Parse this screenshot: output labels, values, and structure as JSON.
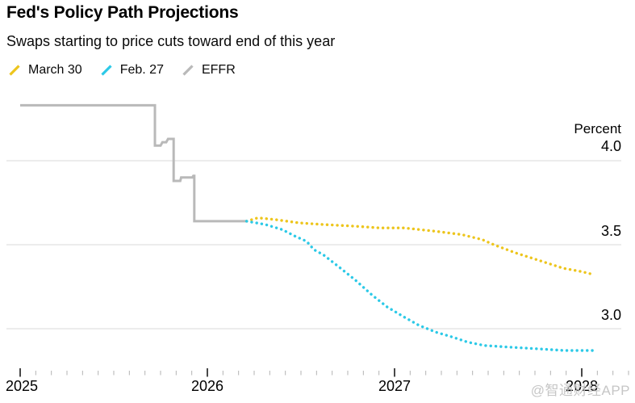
{
  "header": {
    "title": "Fed's Policy Path Projections",
    "subtitle": "Swaps starting to price cuts toward end of this year"
  },
  "legend": [
    {
      "label": "March 30",
      "color": "#edc51c",
      "icon": "line-swatch-icon"
    },
    {
      "label": "Feb. 27",
      "color": "#2cc9e7",
      "icon": "line-swatch-icon"
    },
    {
      "label": "EFFR",
      "color": "#b9b9b9",
      "icon": "line-swatch-icon"
    }
  ],
  "watermark": "@智通财经APP",
  "chart_data": {
    "type": "line",
    "title": "Fed's Policy Path Projections",
    "subtitle": "Swaps starting to price cuts toward end of this year",
    "ylabel": "Percent",
    "grid": "horizontal",
    "legend_position": "top-left",
    "x_axis": {
      "tick_labels": [
        "2025",
        "2026",
        "2027",
        "2028"
      ],
      "tick_values": [
        2025,
        2026,
        2027,
        2028
      ],
      "minor_ticks": "monthly",
      "range": [
        2025.0,
        2028.25
      ]
    },
    "y_axis": {
      "tick_labels": [
        "4.0",
        "3.5",
        "3.0"
      ],
      "tick_values": [
        4.0,
        3.5,
        3.0
      ],
      "visible_range": [
        2.75,
        4.45
      ]
    },
    "series": [
      {
        "name": "EFFR",
        "color": "#b9b9b9",
        "style": "solid",
        "points": [
          [
            2025.0,
            4.33
          ],
          [
            2025.72,
            4.33
          ],
          [
            2025.72,
            4.09
          ],
          [
            2025.75,
            4.09
          ],
          [
            2025.76,
            4.11
          ],
          [
            2025.78,
            4.11
          ],
          [
            2025.79,
            4.13
          ],
          [
            2025.82,
            4.13
          ],
          [
            2025.82,
            3.88
          ],
          [
            2025.855,
            3.88
          ],
          [
            2025.86,
            3.9
          ],
          [
            2025.92,
            3.9
          ],
          [
            2025.925,
            3.91
          ],
          [
            2025.93,
            3.91
          ],
          [
            2025.93,
            3.64
          ],
          [
            2026.21,
            3.64
          ]
        ]
      },
      {
        "name": "March 30",
        "color": "#edc51c",
        "style": "dotted",
        "points": [
          [
            2026.21,
            3.64
          ],
          [
            2026.27,
            3.66
          ],
          [
            2026.36,
            3.65
          ],
          [
            2026.49,
            3.63
          ],
          [
            2026.62,
            3.62
          ],
          [
            2026.79,
            3.61
          ],
          [
            2026.92,
            3.6
          ],
          [
            2027.05,
            3.6
          ],
          [
            2027.22,
            3.58
          ],
          [
            2027.36,
            3.56
          ],
          [
            2027.47,
            3.53
          ],
          [
            2027.53,
            3.5
          ],
          [
            2027.65,
            3.45
          ],
          [
            2027.79,
            3.4
          ],
          [
            2027.9,
            3.36
          ],
          [
            2028.0,
            3.34
          ],
          [
            2028.07,
            3.32
          ]
        ]
      },
      {
        "name": "Feb. 27",
        "color": "#2cc9e7",
        "style": "dotted",
        "points": [
          [
            2026.21,
            3.64
          ],
          [
            2026.31,
            3.62
          ],
          [
            2026.4,
            3.59
          ],
          [
            2026.47,
            3.55
          ],
          [
            2026.53,
            3.52
          ],
          [
            2026.57,
            3.47
          ],
          [
            2026.62,
            3.44
          ],
          [
            2026.7,
            3.37
          ],
          [
            2026.79,
            3.29
          ],
          [
            2026.88,
            3.2
          ],
          [
            2026.96,
            3.13
          ],
          [
            2027.05,
            3.07
          ],
          [
            2027.13,
            3.02
          ],
          [
            2027.22,
            2.98
          ],
          [
            2027.31,
            2.95
          ],
          [
            2027.39,
            2.92
          ],
          [
            2027.48,
            2.9
          ],
          [
            2027.62,
            2.89
          ],
          [
            2027.77,
            2.88
          ],
          [
            2027.91,
            2.87
          ],
          [
            2028.07,
            2.87
          ]
        ]
      }
    ]
  }
}
